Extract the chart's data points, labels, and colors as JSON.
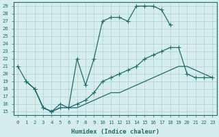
{
  "xlabel": "Humidex (Indice chaleur)",
  "xlim": [
    -0.5,
    23.5
  ],
  "ylim": [
    14.5,
    29.5
  ],
  "bg_color": "#d6eded",
  "grid_color": "#b0cece",
  "line_color": "#1a6b6b",
  "xticks": [
    0,
    1,
    2,
    3,
    4,
    5,
    6,
    7,
    8,
    9,
    10,
    11,
    12,
    13,
    14,
    15,
    16,
    17,
    18,
    19,
    20,
    21,
    22,
    23
  ],
  "yticks": [
    15,
    16,
    17,
    18,
    19,
    20,
    21,
    22,
    23,
    24,
    25,
    26,
    27,
    28,
    29
  ],
  "line_top": {
    "x": [
      0,
      1,
      2,
      3,
      4,
      5,
      6,
      7,
      8,
      9,
      10,
      11,
      12,
      13,
      14,
      15,
      16,
      17,
      18
    ],
    "y": [
      21,
      19,
      18,
      15.5,
      15,
      16,
      15.5,
      22,
      18.5,
      22,
      27,
      27.5,
      27.5,
      27,
      29,
      29,
      29,
      28.5,
      26.5
    ]
  },
  "line_mid": {
    "x": [
      1,
      2,
      3,
      4,
      5,
      6,
      7,
      8,
      9,
      10,
      11,
      12,
      13,
      14,
      15,
      16,
      17,
      18,
      19,
      20,
      21,
      22,
      23
    ],
    "y": [
      19,
      18,
      15.5,
      15,
      15.5,
      15.5,
      16,
      16.5,
      17.5,
      19,
      19.5,
      20,
      20.5,
      21,
      22,
      22.5,
      23,
      23.5,
      23.5,
      20,
      19.5,
      19.5,
      19.5
    ]
  },
  "line_bot": {
    "x": [
      1,
      2,
      3,
      4,
      5,
      6,
      7,
      8,
      9,
      10,
      11,
      12,
      13,
      14,
      15,
      16,
      17,
      18,
      19,
      20,
      21,
      22,
      23
    ],
    "y": [
      19,
      18,
      15.5,
      15,
      15.5,
      15.5,
      15.5,
      16,
      16.5,
      17,
      17.5,
      17.5,
      18,
      18.5,
      19,
      19.5,
      20,
      20.5,
      21,
      21,
      20.5,
      20,
      19.5
    ]
  }
}
